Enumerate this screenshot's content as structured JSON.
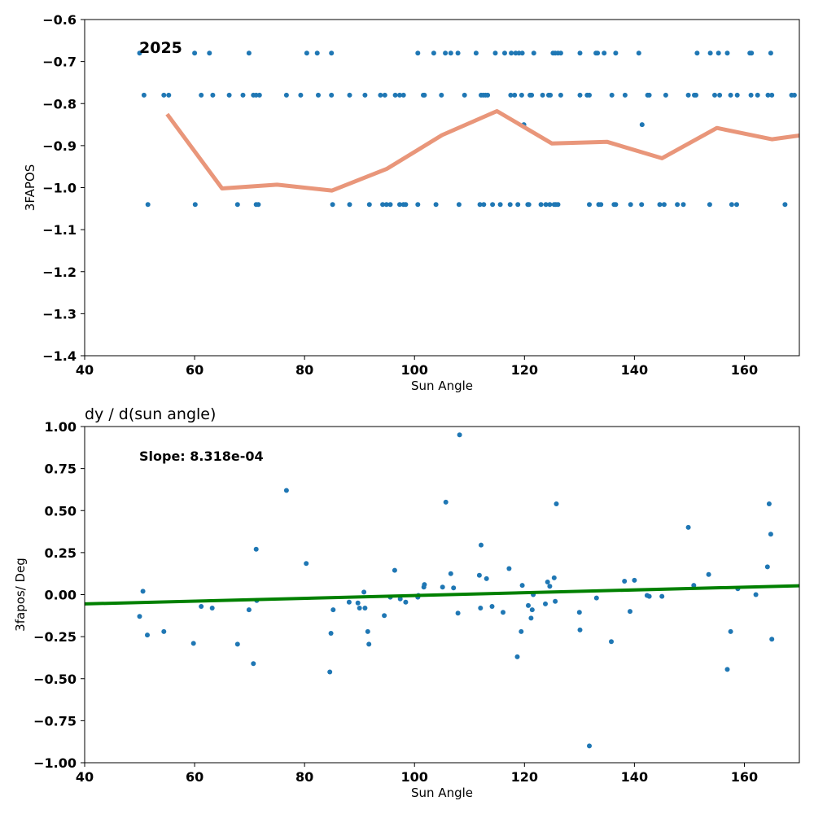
{
  "chart_data": [
    {
      "type": "scatter",
      "annotation": "2025",
      "xlabel": "Sun Angle",
      "ylabel": "3FAPOS",
      "xlim": [
        40,
        170
      ],
      "ylim": [
        -1.4,
        -0.6
      ],
      "xticks": [
        40,
        60,
        80,
        100,
        120,
        140,
        160
      ],
      "yticks": [
        -1.4,
        -1.3,
        -1.2,
        -1.1,
        -1.0,
        -0.9,
        -0.8,
        -0.7,
        -0.6
      ],
      "grid": false,
      "colors": {
        "points": "#1f77b4",
        "line": "#e9967a"
      },
      "series": [
        {
          "kind": "points",
          "points": [
            [
              50.0,
              -0.68
            ],
            [
              60.0,
              -0.68
            ],
            [
              62.7,
              -0.68
            ],
            [
              69.9,
              -0.68
            ],
            [
              80.4,
              -0.68
            ],
            [
              82.3,
              -0.68
            ],
            [
              84.9,
              -0.68
            ],
            [
              100.6,
              -0.68
            ],
            [
              103.5,
              -0.68
            ],
            [
              105.6,
              -0.68
            ],
            [
              106.6,
              -0.68
            ],
            [
              107.9,
              -0.68
            ],
            [
              111.2,
              -0.68
            ],
            [
              114.7,
              -0.68
            ],
            [
              116.4,
              -0.68
            ],
            [
              117.6,
              -0.68
            ],
            [
              118.4,
              -0.68
            ],
            [
              119.0,
              -0.68
            ],
            [
              119.6,
              -0.68
            ],
            [
              121.7,
              -0.68
            ],
            [
              125.2,
              -0.68
            ],
            [
              125.6,
              -0.68
            ],
            [
              126.1,
              -0.68
            ],
            [
              126.6,
              -0.68
            ],
            [
              130.1,
              -0.68
            ],
            [
              133.0,
              -0.68
            ],
            [
              133.3,
              -0.68
            ],
            [
              134.5,
              -0.68
            ],
            [
              136.6,
              -0.68
            ],
            [
              140.8,
              -0.68
            ],
            [
              151.4,
              -0.68
            ],
            [
              153.8,
              -0.68
            ],
            [
              155.3,
              -0.68
            ],
            [
              156.9,
              -0.68
            ],
            [
              161.0,
              -0.68
            ],
            [
              161.3,
              -0.68
            ],
            [
              164.8,
              -0.68
            ],
            [
              50.8,
              -0.78
            ],
            [
              54.4,
              -0.78
            ],
            [
              55.3,
              -0.78
            ],
            [
              61.2,
              -0.78
            ],
            [
              63.3,
              -0.78
            ],
            [
              66.3,
              -0.78
            ],
            [
              68.8,
              -0.78
            ],
            [
              70.7,
              -0.78
            ],
            [
              71.2,
              -0.78
            ],
            [
              71.8,
              -0.78
            ],
            [
              76.7,
              -0.78
            ],
            [
              79.3,
              -0.78
            ],
            [
              82.5,
              -0.78
            ],
            [
              84.9,
              -0.78
            ],
            [
              88.2,
              -0.78
            ],
            [
              91.0,
              -0.78
            ],
            [
              93.8,
              -0.78
            ],
            [
              94.6,
              -0.78
            ],
            [
              96.5,
              -0.78
            ],
            [
              97.3,
              -0.78
            ],
            [
              98.0,
              -0.78
            ],
            [
              101.6,
              -0.78
            ],
            [
              101.8,
              -0.78
            ],
            [
              104.9,
              -0.78
            ],
            [
              109.1,
              -0.78
            ],
            [
              112.1,
              -0.78
            ],
            [
              112.5,
              -0.78
            ],
            [
              112.9,
              -0.78
            ],
            [
              113.3,
              -0.78
            ],
            [
              117.5,
              -0.78
            ],
            [
              118.2,
              -0.78
            ],
            [
              119.5,
              -0.78
            ],
            [
              121.0,
              -0.78
            ],
            [
              121.3,
              -0.78
            ],
            [
              123.3,
              -0.78
            ],
            [
              124.4,
              -0.78
            ],
            [
              124.7,
              -0.78
            ],
            [
              126.6,
              -0.78
            ],
            [
              130.1,
              -0.78
            ],
            [
              131.4,
              -0.78
            ],
            [
              131.8,
              -0.78
            ],
            [
              135.9,
              -0.78
            ],
            [
              138.3,
              -0.78
            ],
            [
              142.4,
              -0.78
            ],
            [
              142.7,
              -0.78
            ],
            [
              145.7,
              -0.78
            ],
            [
              149.8,
              -0.78
            ],
            [
              150.9,
              -0.78
            ],
            [
              151.2,
              -0.78
            ],
            [
              154.6,
              -0.78
            ],
            [
              155.5,
              -0.78
            ],
            [
              157.5,
              -0.78
            ],
            [
              158.7,
              -0.78
            ],
            [
              161.2,
              -0.78
            ],
            [
              162.4,
              -0.78
            ],
            [
              164.3,
              -0.78
            ],
            [
              165.0,
              -0.78
            ],
            [
              168.6,
              -0.78
            ],
            [
              169.1,
              -0.78
            ],
            [
              119.9,
              -0.85
            ],
            [
              141.4,
              -0.85
            ],
            [
              51.5,
              -1.04
            ],
            [
              60.1,
              -1.04
            ],
            [
              67.8,
              -1.04
            ],
            [
              71.2,
              -1.04
            ],
            [
              71.6,
              -1.04
            ],
            [
              85.1,
              -1.04
            ],
            [
              88.2,
              -1.04
            ],
            [
              91.8,
              -1.04
            ],
            [
              94.2,
              -1.04
            ],
            [
              94.9,
              -1.04
            ],
            [
              95.6,
              -1.04
            ],
            [
              97.3,
              -1.04
            ],
            [
              98.0,
              -1.04
            ],
            [
              98.4,
              -1.04
            ],
            [
              100.6,
              -1.04
            ],
            [
              103.9,
              -1.04
            ],
            [
              108.1,
              -1.04
            ],
            [
              111.9,
              -1.04
            ],
            [
              112.6,
              -1.04
            ],
            [
              114.2,
              -1.04
            ],
            [
              115.6,
              -1.04
            ],
            [
              117.4,
              -1.04
            ],
            [
              118.8,
              -1.04
            ],
            [
              120.6,
              -1.04
            ],
            [
              120.8,
              -1.04
            ],
            [
              123.0,
              -1.04
            ],
            [
              123.9,
              -1.04
            ],
            [
              124.6,
              -1.04
            ],
            [
              125.4,
              -1.04
            ],
            [
              125.7,
              -1.04
            ],
            [
              126.1,
              -1.04
            ],
            [
              131.8,
              -1.04
            ],
            [
              133.5,
              -1.04
            ],
            [
              133.9,
              -1.04
            ],
            [
              136.3,
              -1.04
            ],
            [
              136.6,
              -1.04
            ],
            [
              139.3,
              -1.04
            ],
            [
              141.3,
              -1.04
            ],
            [
              144.6,
              -1.04
            ],
            [
              145.4,
              -1.04
            ],
            [
              147.8,
              -1.04
            ],
            [
              148.9,
              -1.04
            ],
            [
              153.7,
              -1.04
            ],
            [
              157.7,
              -1.04
            ],
            [
              158.6,
              -1.04
            ],
            [
              167.4,
              -1.04
            ]
          ]
        },
        {
          "kind": "line",
          "points": [
            [
              55,
              -0.825
            ],
            [
              65,
              -1.002
            ],
            [
              75,
              -0.993
            ],
            [
              85,
              -1.007
            ],
            [
              95,
              -0.955
            ],
            [
              105,
              -0.875
            ],
            [
              115,
              -0.818
            ],
            [
              125,
              -0.895
            ],
            [
              135,
              -0.891
            ],
            [
              145,
              -0.93
            ],
            [
              155,
              -0.858
            ],
            [
              165,
              -0.885
            ],
            [
              170,
              -0.876
            ]
          ]
        }
      ]
    },
    {
      "type": "scatter",
      "title": "dy / d(sun angle)",
      "annotation": "Slope: 8.318e-04",
      "xlabel": "Sun Angle",
      "ylabel": "3fapos/ Deg",
      "xlim": [
        40,
        170
      ],
      "ylim": [
        -1.0,
        1.0
      ],
      "xticks": [
        40,
        60,
        80,
        100,
        120,
        140,
        160
      ],
      "yticks": [
        -1.0,
        -0.75,
        -0.5,
        -0.25,
        0.0,
        0.25,
        0.5,
        0.75,
        1.0
      ],
      "ytick_labels": [
        "−1.00",
        "−0.75",
        "−0.50",
        "−0.25",
        "0.00",
        "0.25",
        "0.50",
        "0.75",
        "1.00"
      ],
      "grid": false,
      "colors": {
        "points": "#1f77b4",
        "line": "#008000"
      },
      "series": [
        {
          "kind": "points",
          "points": [
            [
              50.0,
              -0.13
            ],
            [
              50.6,
              0.02
            ],
            [
              51.4,
              -0.24
            ],
            [
              54.4,
              -0.22
            ],
            [
              59.8,
              -0.29
            ],
            [
              61.2,
              -0.07
            ],
            [
              63.2,
              -0.08
            ],
            [
              67.8,
              -0.295
            ],
            [
              69.9,
              -0.09
            ],
            [
              70.7,
              -0.41
            ],
            [
              71.2,
              0.27
            ],
            [
              71.3,
              -0.035
            ],
            [
              76.7,
              0.62
            ],
            [
              80.3,
              0.185
            ],
            [
              84.6,
              -0.46
            ],
            [
              84.8,
              -0.23
            ],
            [
              85.2,
              -0.09
            ],
            [
              88.1,
              -0.045
            ],
            [
              89.7,
              -0.05
            ],
            [
              90.0,
              -0.08
            ],
            [
              90.8,
              0.015
            ],
            [
              91.0,
              -0.08
            ],
            [
              91.5,
              -0.22
            ],
            [
              91.7,
              -0.295
            ],
            [
              94.5,
              -0.125
            ],
            [
              95.6,
              -0.015
            ],
            [
              96.4,
              0.145
            ],
            [
              97.4,
              -0.025
            ],
            [
              98.4,
              -0.045
            ],
            [
              100.6,
              -0.015
            ],
            [
              100.7,
              -0.005
            ],
            [
              101.7,
              0.045
            ],
            [
              101.8,
              0.06
            ],
            [
              105.1,
              0.045
            ],
            [
              105.7,
              0.55
            ],
            [
              106.6,
              0.125
            ],
            [
              107.1,
              0.04
            ],
            [
              107.9,
              -0.11
            ],
            [
              108.2,
              0.95
            ],
            [
              111.8,
              0.115
            ],
            [
              112.0,
              -0.08
            ],
            [
              112.1,
              0.295
            ],
            [
              113.1,
              0.095
            ],
            [
              114.1,
              -0.07
            ],
            [
              116.1,
              -0.105
            ],
            [
              117.2,
              0.155
            ],
            [
              118.7,
              -0.37
            ],
            [
              119.4,
              -0.22
            ],
            [
              119.6,
              0.055
            ],
            [
              120.7,
              -0.065
            ],
            [
              121.2,
              -0.14
            ],
            [
              121.4,
              -0.09
            ],
            [
              121.6,
              0.0
            ],
            [
              123.8,
              -0.055
            ],
            [
              124.2,
              0.075
            ],
            [
              124.6,
              0.05
            ],
            [
              125.4,
              0.1
            ],
            [
              125.6,
              -0.04
            ],
            [
              125.8,
              0.54
            ],
            [
              130.0,
              -0.105
            ],
            [
              130.1,
              -0.21
            ],
            [
              131.8,
              -0.9
            ],
            [
              133.1,
              -0.02
            ],
            [
              135.8,
              -0.28
            ],
            [
              138.2,
              0.08
            ],
            [
              139.2,
              -0.1
            ],
            [
              140.0,
              0.085
            ],
            [
              142.3,
              -0.005
            ],
            [
              142.7,
              -0.01
            ],
            [
              145.0,
              -0.01
            ],
            [
              149.8,
              0.4
            ],
            [
              150.8,
              0.055
            ],
            [
              153.5,
              0.12
            ],
            [
              156.9,
              -0.445
            ],
            [
              157.5,
              -0.22
            ],
            [
              158.8,
              0.035
            ],
            [
              162.1,
              0.0
            ],
            [
              164.2,
              0.165
            ],
            [
              164.5,
              0.54
            ],
            [
              164.8,
              0.36
            ],
            [
              165.0,
              -0.265
            ]
          ]
        },
        {
          "kind": "line",
          "points": [
            [
              40,
              -0.055
            ],
            [
              170,
              0.053
            ]
          ]
        }
      ]
    }
  ]
}
